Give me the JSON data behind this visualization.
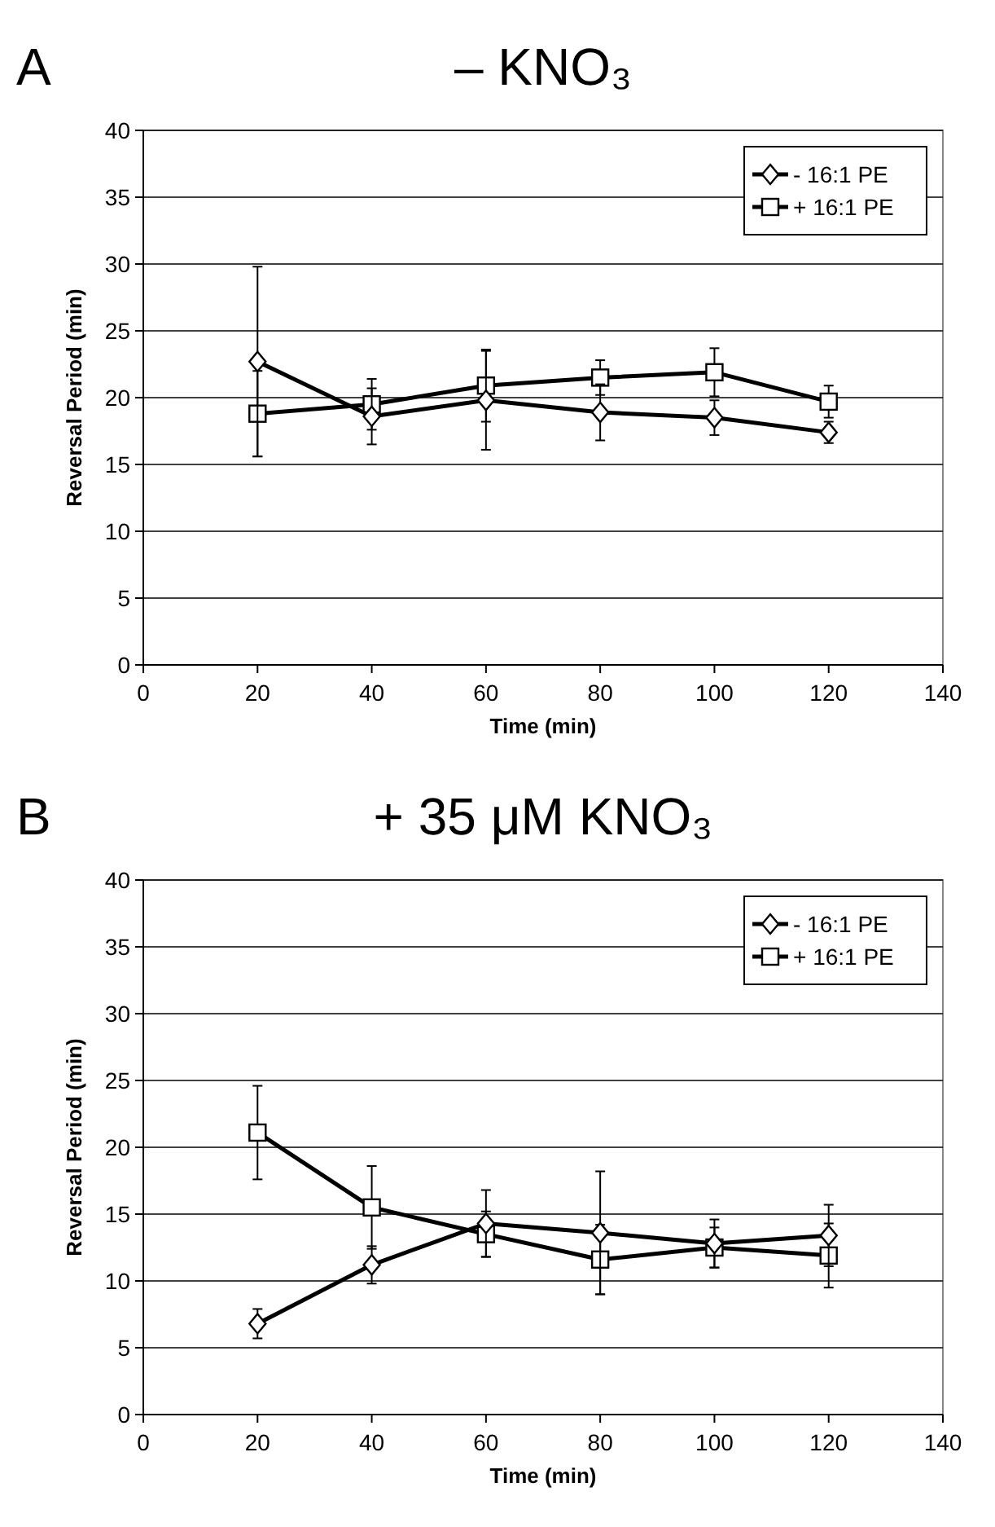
{
  "chart_data": [
    {
      "type": "line",
      "title": "– KNO₃",
      "annotations": [
        "A"
      ],
      "xlabel": "Time (min)",
      "ylabel": "Reversal Period (min)",
      "x": [
        20,
        40,
        60,
        80,
        100,
        120
      ],
      "xlim": [
        0,
        140
      ],
      "xticks": [
        0,
        20,
        40,
        60,
        80,
        100,
        120,
        140
      ],
      "ylim": [
        0,
        40
      ],
      "yticks": [
        0,
        5,
        10,
        15,
        20,
        25,
        30,
        35,
        40
      ],
      "grid": "y",
      "legend": "top right",
      "line_style": "solid",
      "series": [
        {
          "name": "- 16:1 PE",
          "color": "#000000",
          "marker": "diamond",
          "values": [
            22.7,
            18.6,
            19.8,
            18.9,
            18.5,
            17.4
          ],
          "errors": [
            7.1,
            2.1,
            3.7,
            2.1,
            1.3,
            0.8
          ]
        },
        {
          "name": "+ 16:1 PE",
          "color": "#000000",
          "marker": "square",
          "values": [
            18.8,
            19.5,
            20.9,
            21.5,
            21.9,
            19.7
          ],
          "errors": [
            3.2,
            1.9,
            2.7,
            1.3,
            1.8,
            1.2
          ]
        }
      ]
    },
    {
      "type": "line",
      "title": "+ 35 μM KNO₃",
      "annotations": [
        "B"
      ],
      "xlabel": "Time (min)",
      "ylabel": "Reversal Period (min)",
      "x": [
        20,
        40,
        60,
        80,
        100,
        120
      ],
      "xlim": [
        0,
        140
      ],
      "xticks": [
        0,
        20,
        40,
        60,
        80,
        100,
        120,
        140
      ],
      "ylim": [
        0,
        40
      ],
      "yticks": [
        0,
        5,
        10,
        15,
        20,
        25,
        30,
        35,
        40
      ],
      "grid": "y",
      "legend": "top right",
      "line_style": "solid",
      "series": [
        {
          "name": "- 16:1 PE",
          "color": "#000000",
          "marker": "diamond",
          "values": [
            6.8,
            11.2,
            14.3,
            13.6,
            12.8,
            13.4
          ],
          "errors": [
            1.1,
            1.4,
            2.5,
            4.6,
            1.8,
            2.3
          ]
        },
        {
          "name": "+ 16:1 PE",
          "color": "#000000",
          "marker": "square",
          "values": [
            21.1,
            15.5,
            13.5,
            11.6,
            12.5,
            11.9
          ],
          "errors": [
            3.5,
            3.1,
            1.7,
            2.6,
            1.5,
            2.4
          ]
        }
      ]
    }
  ]
}
